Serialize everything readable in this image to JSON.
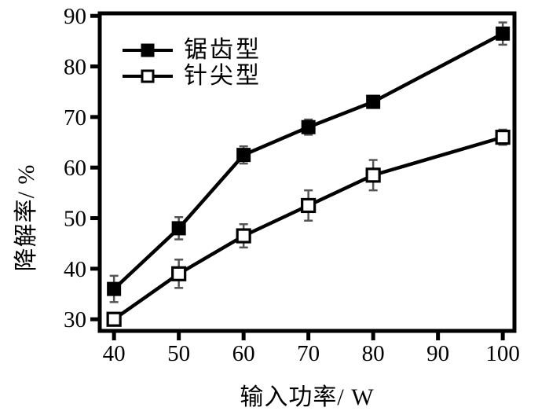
{
  "colors": {
    "foreground": "#000000",
    "background": "#ffffff",
    "error_bar": "#555555"
  },
  "chart_data": {
    "type": "line",
    "title": "",
    "xlabel": "输入功率/ W",
    "ylabel": "降解率/ %",
    "x": [
      40,
      50,
      60,
      70,
      80,
      100
    ],
    "series": [
      {
        "name": "锯齿型",
        "marker": "filled-square",
        "values": [
          36,
          48,
          62.5,
          68,
          73,
          86.5
        ],
        "yerr": [
          2.6,
          2.2,
          1.7,
          1.5,
          1.2,
          2.2
        ]
      },
      {
        "name": "针尖型",
        "marker": "open-square",
        "values": [
          30,
          39,
          46.5,
          52.5,
          58.5,
          66
        ],
        "yerr": [
          1.2,
          2.8,
          2.3,
          3.0,
          3.0,
          1.5
        ]
      }
    ],
    "xticks": [
      40,
      50,
      60,
      70,
      80,
      90,
      100
    ],
    "yticks": [
      30,
      40,
      50,
      60,
      70,
      80,
      90
    ],
    "xlim": [
      37.8,
      101.8
    ],
    "ylim": [
      27.7,
      90.5
    ],
    "grid": false,
    "legend_position": "top-left",
    "error_bars": true
  }
}
